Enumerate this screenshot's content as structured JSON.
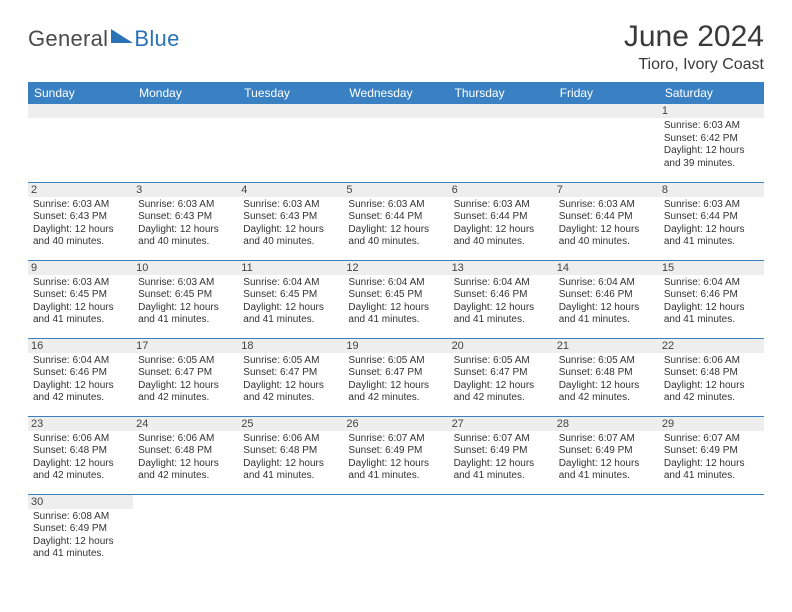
{
  "logo": {
    "text1": "General",
    "text2": "Blue"
  },
  "title": "June 2024",
  "location": "Tioro, Ivory Coast",
  "colors": {
    "header_bg": "#3a81c4",
    "header_text": "#ffffff",
    "daynum_bg": "#eeeeee",
    "border": "#3a81c4",
    "logo_blue": "#2a72b5",
    "text": "#333333"
  },
  "day_headers": [
    "Sunday",
    "Monday",
    "Tuesday",
    "Wednesday",
    "Thursday",
    "Friday",
    "Saturday"
  ],
  "weeks": [
    [
      null,
      null,
      null,
      null,
      null,
      null,
      {
        "n": "1",
        "sr": "6:03 AM",
        "ss": "6:42 PM",
        "dl": "12 hours and 39 minutes."
      }
    ],
    [
      {
        "n": "2",
        "sr": "6:03 AM",
        "ss": "6:43 PM",
        "dl": "12 hours and 40 minutes."
      },
      {
        "n": "3",
        "sr": "6:03 AM",
        "ss": "6:43 PM",
        "dl": "12 hours and 40 minutes."
      },
      {
        "n": "4",
        "sr": "6:03 AM",
        "ss": "6:43 PM",
        "dl": "12 hours and 40 minutes."
      },
      {
        "n": "5",
        "sr": "6:03 AM",
        "ss": "6:44 PM",
        "dl": "12 hours and 40 minutes."
      },
      {
        "n": "6",
        "sr": "6:03 AM",
        "ss": "6:44 PM",
        "dl": "12 hours and 40 minutes."
      },
      {
        "n": "7",
        "sr": "6:03 AM",
        "ss": "6:44 PM",
        "dl": "12 hours and 40 minutes."
      },
      {
        "n": "8",
        "sr": "6:03 AM",
        "ss": "6:44 PM",
        "dl": "12 hours and 41 minutes."
      }
    ],
    [
      {
        "n": "9",
        "sr": "6:03 AM",
        "ss": "6:45 PM",
        "dl": "12 hours and 41 minutes."
      },
      {
        "n": "10",
        "sr": "6:03 AM",
        "ss": "6:45 PM",
        "dl": "12 hours and 41 minutes."
      },
      {
        "n": "11",
        "sr": "6:04 AM",
        "ss": "6:45 PM",
        "dl": "12 hours and 41 minutes."
      },
      {
        "n": "12",
        "sr": "6:04 AM",
        "ss": "6:45 PM",
        "dl": "12 hours and 41 minutes."
      },
      {
        "n": "13",
        "sr": "6:04 AM",
        "ss": "6:46 PM",
        "dl": "12 hours and 41 minutes."
      },
      {
        "n": "14",
        "sr": "6:04 AM",
        "ss": "6:46 PM",
        "dl": "12 hours and 41 minutes."
      },
      {
        "n": "15",
        "sr": "6:04 AM",
        "ss": "6:46 PM",
        "dl": "12 hours and 41 minutes."
      }
    ],
    [
      {
        "n": "16",
        "sr": "6:04 AM",
        "ss": "6:46 PM",
        "dl": "12 hours and 42 minutes."
      },
      {
        "n": "17",
        "sr": "6:05 AM",
        "ss": "6:47 PM",
        "dl": "12 hours and 42 minutes."
      },
      {
        "n": "18",
        "sr": "6:05 AM",
        "ss": "6:47 PM",
        "dl": "12 hours and 42 minutes."
      },
      {
        "n": "19",
        "sr": "6:05 AM",
        "ss": "6:47 PM",
        "dl": "12 hours and 42 minutes."
      },
      {
        "n": "20",
        "sr": "6:05 AM",
        "ss": "6:47 PM",
        "dl": "12 hours and 42 minutes."
      },
      {
        "n": "21",
        "sr": "6:05 AM",
        "ss": "6:48 PM",
        "dl": "12 hours and 42 minutes."
      },
      {
        "n": "22",
        "sr": "6:06 AM",
        "ss": "6:48 PM",
        "dl": "12 hours and 42 minutes."
      }
    ],
    [
      {
        "n": "23",
        "sr": "6:06 AM",
        "ss": "6:48 PM",
        "dl": "12 hours and 42 minutes."
      },
      {
        "n": "24",
        "sr": "6:06 AM",
        "ss": "6:48 PM",
        "dl": "12 hours and 42 minutes."
      },
      {
        "n": "25",
        "sr": "6:06 AM",
        "ss": "6:48 PM",
        "dl": "12 hours and 41 minutes."
      },
      {
        "n": "26",
        "sr": "6:07 AM",
        "ss": "6:49 PM",
        "dl": "12 hours and 41 minutes."
      },
      {
        "n": "27",
        "sr": "6:07 AM",
        "ss": "6:49 PM",
        "dl": "12 hours and 41 minutes."
      },
      {
        "n": "28",
        "sr": "6:07 AM",
        "ss": "6:49 PM",
        "dl": "12 hours and 41 minutes."
      },
      {
        "n": "29",
        "sr": "6:07 AM",
        "ss": "6:49 PM",
        "dl": "12 hours and 41 minutes."
      }
    ],
    [
      {
        "n": "30",
        "sr": "6:08 AM",
        "ss": "6:49 PM",
        "dl": "12 hours and 41 minutes."
      },
      null,
      null,
      null,
      null,
      null,
      null
    ]
  ],
  "labels": {
    "sunrise": "Sunrise:",
    "sunset": "Sunset:",
    "daylight": "Daylight:"
  }
}
